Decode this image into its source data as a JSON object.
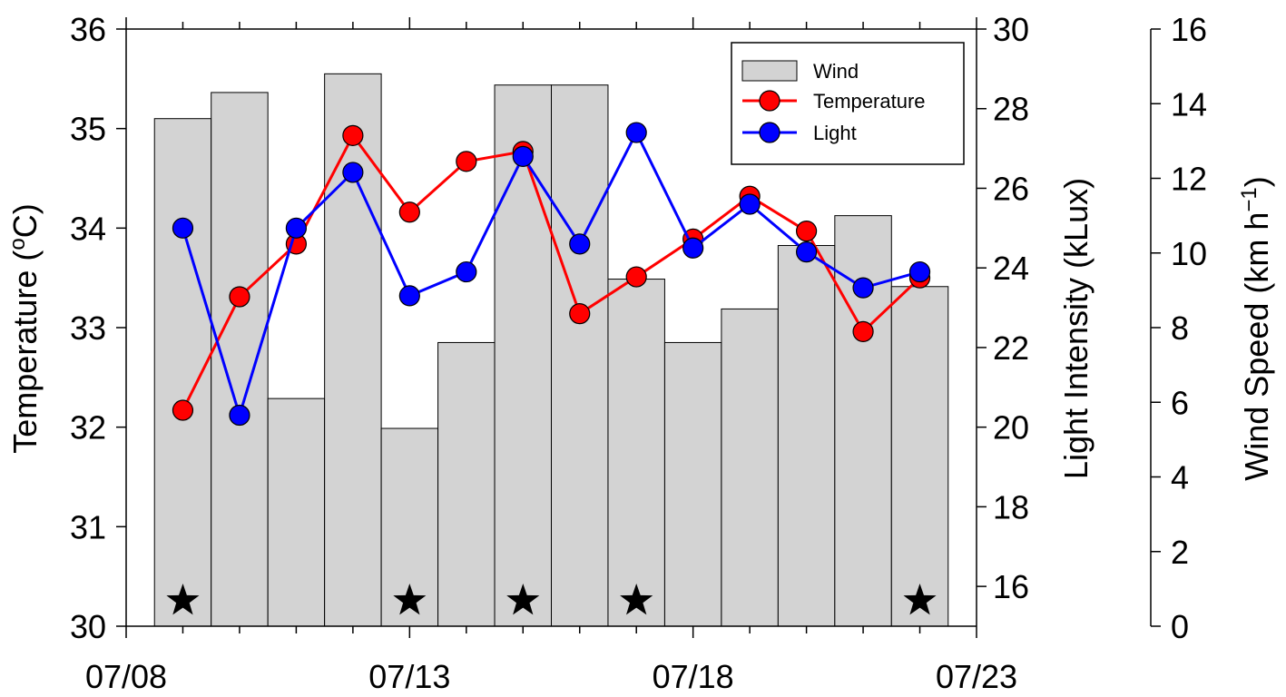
{
  "chart_data": {
    "type": "bar+line",
    "x_ticks": [
      "07/08",
      "07/13",
      "07/18",
      "07/23"
    ],
    "dates": [
      "07/09",
      "07/10",
      "07/11",
      "07/12",
      "07/13",
      "07/14",
      "07/15",
      "07/16",
      "07/17",
      "07/18",
      "07/19",
      "07/20",
      "07/21",
      "07/22"
    ],
    "series": [
      {
        "name": "Wind",
        "kind": "bar",
        "axis": "wind",
        "color": "#d3d3d3",
        "values": [
          13.6,
          14.3,
          6.1,
          14.8,
          5.3,
          7.6,
          14.5,
          14.5,
          9.3,
          7.6,
          8.5,
          10.2,
          11.0,
          9.1
        ]
      },
      {
        "name": "Temperature",
        "kind": "line",
        "axis": "temperature",
        "color": "#ff0000",
        "values": [
          32.17,
          33.31,
          33.84,
          34.93,
          34.16,
          34.67,
          34.77,
          33.14,
          33.51,
          33.89,
          34.32,
          33.97,
          32.96,
          33.5
        ]
      },
      {
        "name": "Light",
        "kind": "line",
        "axis": "light",
        "color": "#0000ff",
        "values": [
          25.0,
          20.3,
          25.0,
          26.4,
          23.3,
          23.9,
          26.8,
          24.6,
          27.4,
          24.5,
          25.6,
          24.4,
          23.5,
          23.9
        ]
      }
    ],
    "star_dates": [
      "07/09",
      "07/13",
      "07/15",
      "07/17",
      "07/22"
    ],
    "axes": {
      "temperature": {
        "label": "Temperature (°C)",
        "label_main": "Temperature (",
        "label_sup": "o",
        "label_end": "C)",
        "ylim": [
          30,
          36
        ],
        "ticks": [
          "30",
          "31",
          "32",
          "33",
          "34",
          "35",
          "36"
        ]
      },
      "light": {
        "label": "Light Intensity (kLux)",
        "ylim": [
          15,
          30
        ],
        "ticks": [
          "16",
          "18",
          "20",
          "22",
          "24",
          "26",
          "28",
          "30"
        ]
      },
      "wind": {
        "label": "Wind Speed (km h⁻¹)",
        "label_main": "Wind Speed (km h",
        "label_sup": "−1",
        "label_end": ")",
        "ylim": [
          0,
          16
        ],
        "ticks": [
          "0",
          "2",
          "4",
          "6",
          "8",
          "10",
          "12",
          "14",
          "16"
        ]
      }
    },
    "legend": {
      "position": "top-right",
      "items": [
        "Wind",
        "Temperature",
        "Light"
      ]
    },
    "grid": false
  }
}
